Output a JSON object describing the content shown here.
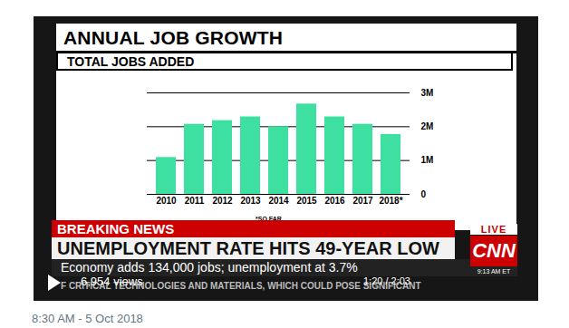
{
  "chart_data": {
    "type": "bar",
    "title": "ANNUAL JOB GROWTH",
    "subtitle": "TOTAL JOBS ADDED",
    "categories": [
      "2010",
      "2011",
      "2012",
      "2013",
      "2014",
      "2015",
      "2016",
      "2017",
      "2018*"
    ],
    "values": [
      1090000,
      2070000,
      2180000,
      2290000,
      2000000,
      2670000,
      2290000,
      2070000,
      1770000
    ],
    "color": "#3ee0a1",
    "ylim": [
      0,
      3000000
    ],
    "yticks": [
      0,
      {
        "value": 1000000,
        "label": "1M"
      },
      {
        "value": 2000000,
        "label": "2M"
      },
      {
        "value": 3000000,
        "label": "3M"
      }
    ],
    "grid": true,
    "note": "*SO FAR"
  },
  "broadcast": {
    "banner": "BREAKING NEWS",
    "headline": "UNEMPLOYMENT RATE HITS 49-YEAR LOW",
    "subheadline": "Economy adds 134,000 jobs; unemployment at 3.7%",
    "ticker": "F CRITICAL TECHNOLOGIES AND MATERIALS, WHICH COULD POSE SIGNIFICANT",
    "live": "LIVE",
    "network": "CNN",
    "clock": "9:13 AM ET"
  },
  "player": {
    "views": "6,954 views",
    "time": "1:20 / 2:03"
  },
  "tweet": {
    "timestamp": "8:30 AM - 5 Oct 2018"
  }
}
